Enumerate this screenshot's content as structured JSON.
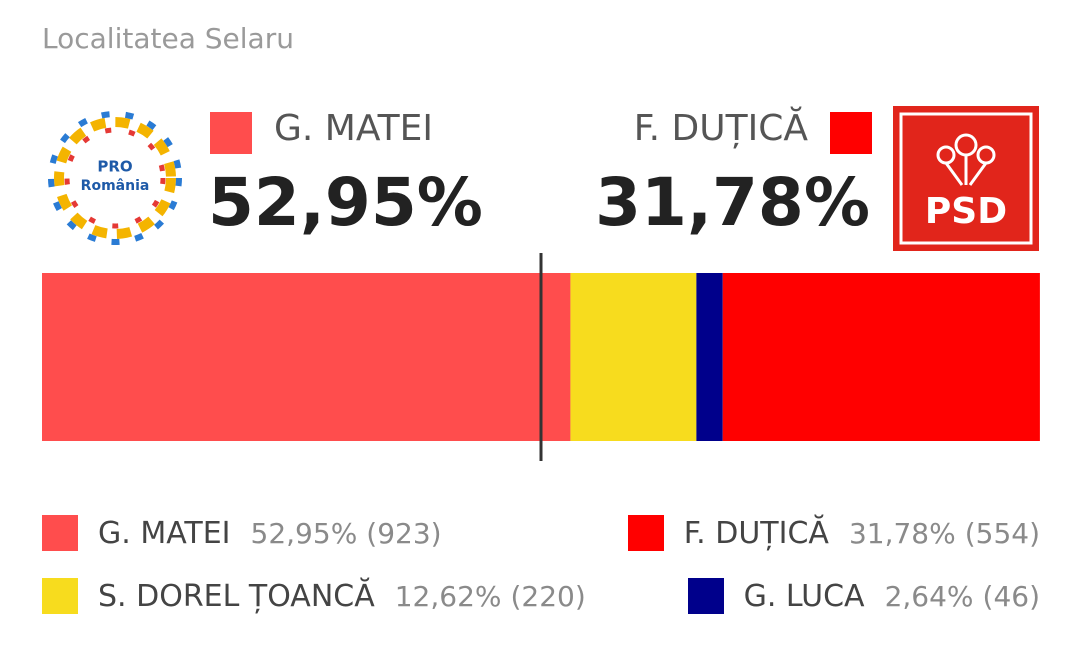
{
  "chart_data": {
    "type": "stacked-bar",
    "title": "Localitatea Selaru",
    "left_logo": [
      "PRO",
      "România"
    ],
    "right_logo": "PSD",
    "xlim": [
      0,
      100
    ],
    "threshold": 50,
    "series": [
      {
        "name": "G. MATEI",
        "color": "#ff4d4d",
        "values": [
          52.95
        ],
        "value_labels": [
          "52,95%"
        ],
        "votes": [
          923
        ],
        "vote_labels": [
          "(923)"
        ]
      },
      {
        "name": "S. DOREL ȚOANCĂ",
        "color": "#f7dc1e",
        "values": [
          12.62
        ],
        "value_labels": [
          "12,62%"
        ],
        "votes": [
          220
        ],
        "vote_labels": [
          "(220)"
        ]
      },
      {
        "name": "G. LUCA",
        "color": "#00008b",
        "values": [
          2.64
        ],
        "value_labels": [
          "2,64%"
        ],
        "votes": [
          46
        ],
        "vote_labels": [
          "(46)"
        ]
      },
      {
        "name": "F. DUȚICĂ",
        "color": "#ff0000",
        "values": [
          31.78
        ],
        "value_labels": [
          "31,78%"
        ],
        "votes": [
          554
        ],
        "vote_labels": [
          "(554)"
        ]
      }
    ]
  }
}
